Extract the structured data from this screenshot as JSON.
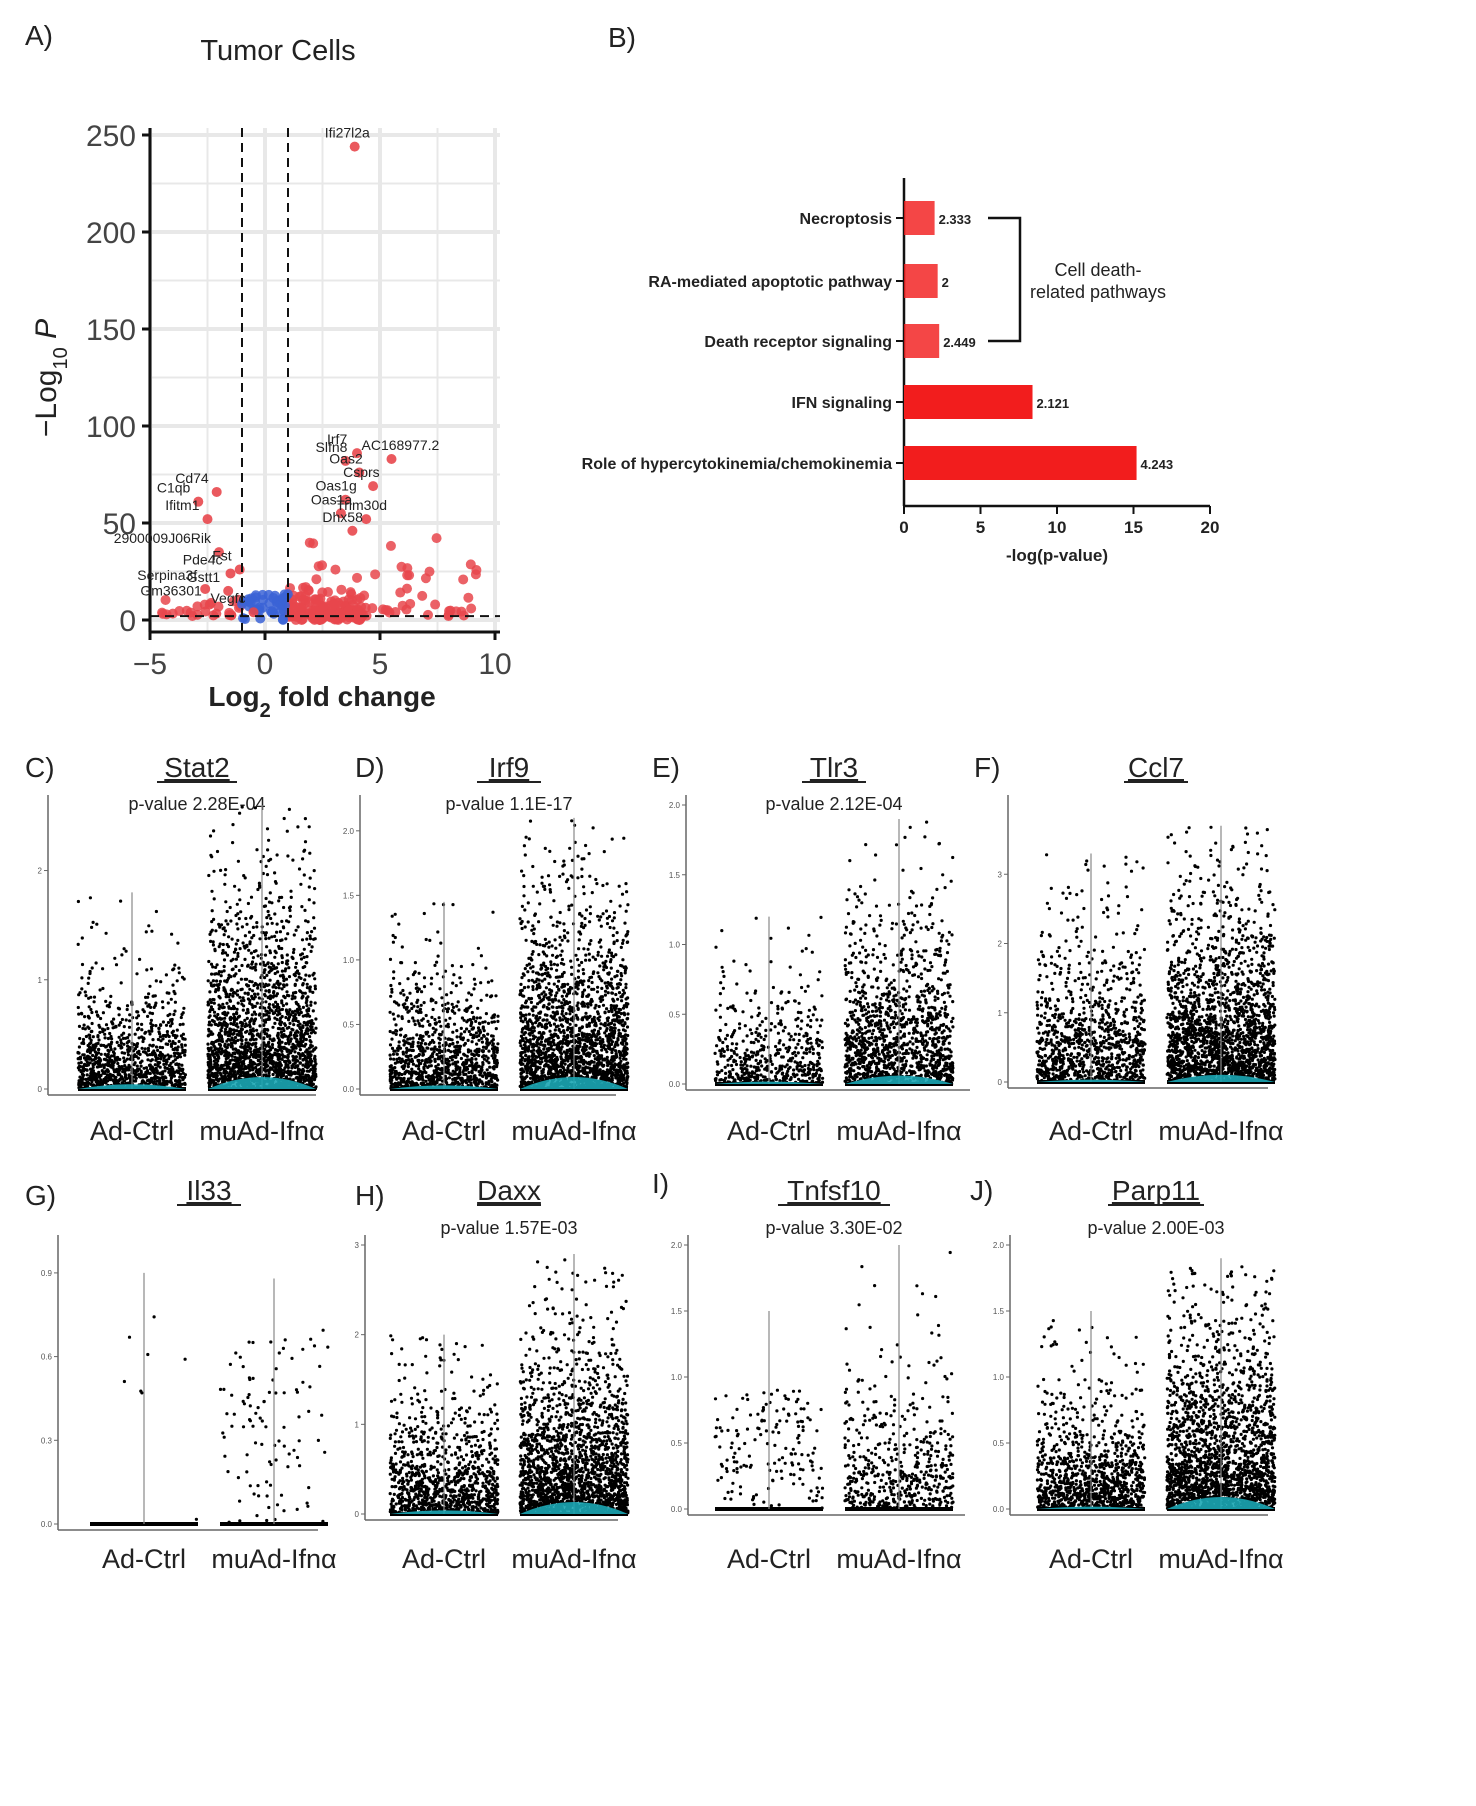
{
  "panels": {
    "A": "A)",
    "B": "B)",
    "C": "C)",
    "D": "D)",
    "E": "E)",
    "F": "F)",
    "G": "G)",
    "H": "H)",
    "I": "I)",
    "J": "J)"
  },
  "colors": {
    "up": "#e8474c",
    "down": "#3b63d6",
    "bar": "#f21d1d",
    "violin": "#1ba6b4",
    "dots": "#000000",
    "grid": "#e8e8e8"
  },
  "chart_data": [
    {
      "id": "A",
      "type": "scatter",
      "title": "Tumor  Cells",
      "xlabel": "Log",
      "xlabel_sub": "2",
      "xlabel_rest": " fold change",
      "ylabel": "−Log",
      "ylabel_sub": "10",
      "ylabel_rest": " P",
      "xlim": [
        -5,
        10
      ],
      "ylim": [
        0,
        260
      ],
      "xticks": [
        -5,
        0,
        5,
        10
      ],
      "yticks": [
        0,
        50,
        100,
        150,
        200,
        250
      ],
      "fc_cutoff": [
        -1,
        1
      ],
      "p_cutoff": 2,
      "labeled_points": [
        {
          "gene": "Ifi27l2a",
          "x": 3.9,
          "y": 244
        },
        {
          "gene": "Irf7",
          "x": 4.0,
          "y": 86
        },
        {
          "gene": "AC168977.2",
          "x": 5.5,
          "y": 83
        },
        {
          "gene": "Slfn8",
          "x": 3.5,
          "y": 82
        },
        {
          "gene": "Oas2",
          "x": 4.1,
          "y": 76
        },
        {
          "gene": "Cd74",
          "x": -2.1,
          "y": 66
        },
        {
          "gene": "Csprs",
          "x": 4.7,
          "y": 69
        },
        {
          "gene": "Oas1g",
          "x": 3.5,
          "y": 62
        },
        {
          "gene": "C1qb",
          "x": -2.9,
          "y": 61
        },
        {
          "gene": "Trim30d",
          "x": 4.4,
          "y": 52
        },
        {
          "gene": "Oas1a",
          "x": 3.3,
          "y": 55
        },
        {
          "gene": "Ifitm1",
          "x": -2.5,
          "y": 52
        },
        {
          "gene": "Dhx58",
          "x": 3.8,
          "y": 46
        },
        {
          "gene": "2900009J06Rik",
          "x": -2.0,
          "y": 35
        },
        {
          "gene": "Fst",
          "x": -1.1,
          "y": 26
        },
        {
          "gene": "Pde4c",
          "x": -1.5,
          "y": 24
        },
        {
          "gene": "Gstt1",
          "x": -1.6,
          "y": 15
        },
        {
          "gene": "Serpina3f",
          "x": -2.6,
          "y": 16
        },
        {
          "gene": "Gm36301",
          "x": -2.4,
          "y": 8
        },
        {
          "gene": "Vegfc",
          "x": -0.5,
          "y": 4
        }
      ]
    },
    {
      "id": "B",
      "type": "bar",
      "orientation": "horizontal",
      "xlabel": "-log(p-value)",
      "xlim": [
        0,
        20
      ],
      "xticks": [
        0,
        5,
        10,
        15,
        20
      ],
      "categories": [
        "Necroptosis",
        "RA-mediated apoptotic pathway",
        "Death receptor signaling",
        "IFN signaling",
        "Role of hypercytokinemia/chemokinemia"
      ],
      "values": [
        2.0,
        2.2,
        2.3,
        8.4,
        15.2
      ],
      "data_labels": [
        "2.333",
        "2",
        "2.449",
        "2.121",
        "4.243"
      ],
      "bracket_label": [
        "Cell death-",
        "related pathways"
      ]
    },
    {
      "id": "C",
      "type": "violin",
      "gene": "Stat2",
      "pvalue": "p-value 2.28E-04",
      "groups": [
        "Ad-Ctrl",
        "muAd-Ifnα"
      ],
      "ylim": [
        0,
        2.6
      ],
      "yticks": [
        0,
        1,
        2
      ],
      "ytick_labels": [
        "0",
        "1",
        "2"
      ],
      "max": [
        1.8,
        2.6
      ],
      "spread": [
        1.2,
        2.1
      ],
      "n": [
        1000,
        2000
      ],
      "density": [
        0.4,
        1
      ]
    },
    {
      "id": "D",
      "type": "violin",
      "gene": "Irf9",
      "pvalue": "p-value 1.1E-17",
      "groups": [
        "Ad-Ctrl",
        "muAd-Ifnα"
      ],
      "ylim": [
        0,
        2.2
      ],
      "yticks": [
        0,
        0.5,
        1.0,
        1.5,
        2.0
      ],
      "ytick_labels": [
        "0.0",
        "0.5",
        "1.0",
        "1.5",
        "2.0"
      ],
      "max": [
        1.45,
        2.1
      ],
      "spread": [
        1.1,
        1.6
      ],
      "n": [
        1000,
        2000
      ],
      "density": [
        0.3,
        1
      ]
    },
    {
      "id": "E",
      "type": "violin",
      "gene": "Tlr3",
      "pvalue": "p-value 2.12E-04",
      "groups": [
        "Ad-Ctrl",
        "muAd-Ifnα"
      ],
      "ylim": [
        0,
        2.0
      ],
      "yticks": [
        0,
        0.5,
        1.0,
        1.5,
        2.0
      ],
      "ytick_labels": [
        "0.0",
        "0.5",
        "1.0",
        "1.5",
        "2.0"
      ],
      "max": [
        1.2,
        1.9
      ],
      "spread": [
        0.9,
        1.5
      ],
      "n": [
        500,
        1300
      ],
      "density": [
        0.2,
        0.7
      ]
    },
    {
      "id": "F",
      "type": "violin",
      "gene": "Ccl7",
      "pvalue": "",
      "groups": [
        "Ad-Ctrl",
        "muAd-Ifnα"
      ],
      "ylim": [
        0,
        4
      ],
      "yticks": [
        0,
        1,
        2,
        3
      ],
      "ytick_labels": [
        "0",
        "1",
        "2",
        "3"
      ],
      "max": [
        3.3,
        3.7
      ],
      "spread": [
        2.6,
        3.3
      ],
      "n": [
        1000,
        2000
      ],
      "density": [
        0.2,
        0.6
      ]
    },
    {
      "id": "G",
      "type": "violin",
      "gene": "Il33",
      "pvalue": "",
      "groups": [
        "Ad-Ctrl",
        "muAd-Ifnα"
      ],
      "ylim": [
        0,
        1.0
      ],
      "yticks": [
        0,
        0.3,
        0.6,
        0.9
      ],
      "ytick_labels": [
        "0.0",
        "0.3",
        "0.6",
        "0.9"
      ],
      "max": [
        0.9,
        0.88
      ],
      "spread": [
        1.0,
        0.7
      ],
      "n": [
        8,
        100
      ],
      "density": [
        0,
        0
      ]
    },
    {
      "id": "H",
      "type": "violin",
      "gene": "Daxx",
      "pvalue": "p-value 1.57E-03",
      "groups": [
        "Ad-Ctrl",
        "muAd-Ifnα"
      ],
      "ylim": [
        0,
        3.0
      ],
      "yticks": [
        0,
        1,
        2,
        3
      ],
      "ytick_labels": [
        "0",
        "1",
        "2",
        "3"
      ],
      "max": [
        2.0,
        2.9
      ],
      "spread": [
        1.5,
        2.3
      ],
      "n": [
        1000,
        2000
      ],
      "density": [
        0.3,
        1
      ]
    },
    {
      "id": "I",
      "type": "violin",
      "gene": "Tnfsf10",
      "pvalue": "p-value 3.30E-02",
      "groups": [
        "Ad-Ctrl",
        "muAd-Ifnα"
      ],
      "ylim": [
        0,
        2.0
      ],
      "yticks": [
        0,
        0.5,
        1.0,
        1.5,
        2.0
      ],
      "ytick_labels": [
        "0.0",
        "0.5",
        "1.0",
        "1.5",
        "2.0"
      ],
      "max": [
        1.5,
        2.0
      ],
      "spread": [
        0.9,
        1.3
      ],
      "n": [
        160,
        500
      ],
      "density": [
        0,
        0
      ]
    },
    {
      "id": "J",
      "type": "violin",
      "gene": "Parp11",
      "pvalue": "p-value 2.00E-03",
      "groups": [
        "Ad-Ctrl",
        "muAd-Ifnα"
      ],
      "ylim": [
        0,
        2.0
      ],
      "yticks": [
        0,
        0.5,
        1.0,
        1.5,
        2.0
      ],
      "ytick_labels": [
        "0.0",
        "0.5",
        "1.0",
        "1.5",
        "2.0"
      ],
      "max": [
        1.5,
        1.9
      ],
      "spread": [
        1.1,
        1.7
      ],
      "n": [
        1000,
        2000
      ],
      "density": [
        0.2,
        1
      ]
    }
  ]
}
